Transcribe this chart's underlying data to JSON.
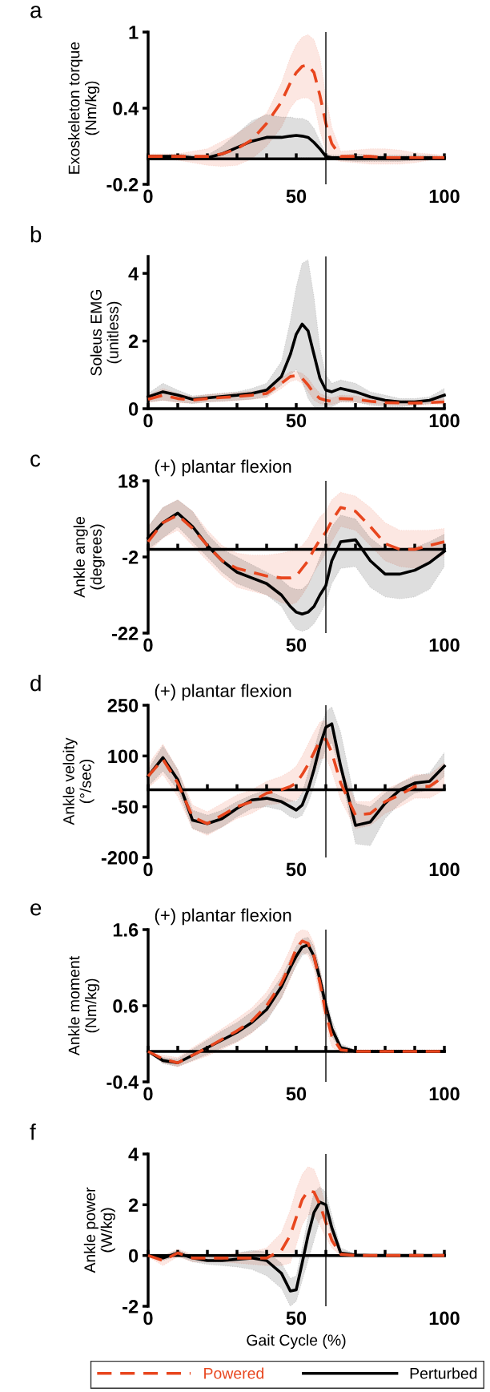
{
  "chart_data": [
    {
      "type": "line",
      "title": "a",
      "ylabel": "Exoskeleton torque\n(Nm/kg)",
      "x": [
        0,
        5,
        10,
        15,
        20,
        25,
        30,
        35,
        40,
        45,
        48,
        50,
        52,
        54,
        56,
        58,
        60,
        62,
        65,
        70,
        75,
        80,
        85,
        90,
        95,
        100
      ],
      "series": [
        {
          "color": "#e8461e",
          "line_style": "dashed",
          "values": [
            0.02,
            0.02,
            0.02,
            0.02,
            0.02,
            0.04,
            0.08,
            0.15,
            0.28,
            0.45,
            0.6,
            0.68,
            0.73,
            0.74,
            0.68,
            0.5,
            0.28,
            0.12,
            0.02,
            0.02,
            0.02,
            0.01,
            0.01,
            0.01,
            0.01,
            0.01
          ],
          "upper": [
            0.04,
            0.04,
            0.04,
            0.06,
            0.08,
            0.14,
            0.2,
            0.28,
            0.36,
            0.6,
            0.8,
            0.9,
            0.96,
            0.98,
            0.94,
            0.8,
            0.5,
            0.25,
            0.06,
            0.07,
            0.08,
            0.08,
            0.07,
            0.05,
            0.04,
            0.03
          ],
          "lower": [
            0.0,
            0.0,
            -0.01,
            -0.03,
            -0.05,
            -0.06,
            -0.05,
            0.0,
            0.1,
            0.25,
            0.4,
            0.46,
            0.48,
            0.48,
            0.44,
            0.22,
            0.06,
            0.0,
            -0.02,
            -0.03,
            -0.04,
            -0.04,
            -0.04,
            -0.03,
            -0.01,
            0.0
          ]
        },
        {
          "color": "#000000",
          "line_style": "solid",
          "values": [
            0.02,
            0.02,
            0.02,
            0.01,
            0.01,
            0.04,
            0.09,
            0.14,
            0.17,
            0.17,
            0.18,
            0.185,
            0.18,
            0.17,
            0.13,
            0.08,
            0.02,
            0.01,
            0.01,
            0.01,
            0.01,
            0.01,
            0.01,
            0.01,
            0.01,
            0.01
          ],
          "upper": [
            0.03,
            0.03,
            0.04,
            0.03,
            0.03,
            0.1,
            0.2,
            0.3,
            0.35,
            0.33,
            0.33,
            0.32,
            0.32,
            0.3,
            0.24,
            0.14,
            0.04,
            0.03,
            0.03,
            0.04,
            0.03,
            0.03,
            0.03,
            0.03,
            0.03,
            0.02
          ],
          "lower": [
            0.01,
            0.01,
            0.0,
            0.0,
            0.0,
            0.0,
            0.0,
            0.0,
            0.0,
            0.0,
            0.0,
            0.01,
            0.01,
            0.01,
            0.0,
            0.0,
            0.0,
            0.0,
            -0.01,
            -0.02,
            -0.02,
            -0.02,
            -0.02,
            -0.01,
            0.0,
            0.0
          ]
        }
      ],
      "xlim": [
        0,
        100
      ],
      "xticks": [
        0,
        {
          "value": 10,
          "label": null
        },
        {
          "value": 20,
          "label": null
        },
        {
          "value": 30,
          "label": null
        },
        {
          "value": 40,
          "label": null
        },
        50,
        {
          "value": 60,
          "label": null
        },
        {
          "value": 70,
          "label": null
        },
        {
          "value": 80,
          "label": null
        },
        {
          "value": 90,
          "label": null
        },
        100
      ],
      "ylim": [
        -0.2,
        1
      ],
      "yticks": [
        -0.2,
        0.4,
        1
      ],
      "ref_lines": [
        {
          "axis": "x",
          "value": 60
        }
      ]
    },
    {
      "type": "line",
      "title": "b",
      "ylabel": "Soleus EMG\n(unitless)",
      "x": [
        0,
        5,
        10,
        15,
        20,
        25,
        30,
        35,
        40,
        45,
        48,
        50,
        52,
        54,
        56,
        58,
        60,
        62,
        65,
        70,
        75,
        80,
        85,
        90,
        95,
        100
      ],
      "series": [
        {
          "color": "#e8461e",
          "line_style": "dashed",
          "values": [
            0.28,
            0.4,
            0.3,
            0.25,
            0.3,
            0.33,
            0.36,
            0.4,
            0.45,
            0.75,
            0.95,
            0.98,
            0.9,
            0.7,
            0.45,
            0.3,
            0.25,
            0.22,
            0.3,
            0.28,
            0.22,
            0.18,
            0.17,
            0.17,
            0.18,
            0.2
          ],
          "upper": [
            0.4,
            0.6,
            0.45,
            0.35,
            0.42,
            0.45,
            0.48,
            0.52,
            0.58,
            0.9,
            1.1,
            1.1,
            1.05,
            0.9,
            0.65,
            0.45,
            0.38,
            0.32,
            0.4,
            0.38,
            0.3,
            0.25,
            0.24,
            0.24,
            0.25,
            0.3
          ],
          "lower": [
            0.18,
            0.25,
            0.18,
            0.16,
            0.2,
            0.22,
            0.24,
            0.28,
            0.32,
            0.6,
            0.8,
            0.85,
            0.75,
            0.5,
            0.25,
            0.15,
            0.12,
            0.12,
            0.2,
            0.18,
            0.14,
            0.11,
            0.1,
            0.1,
            0.11,
            0.12
          ]
        },
        {
          "color": "#000000",
          "line_style": "solid",
          "values": [
            0.35,
            0.5,
            0.4,
            0.28,
            0.32,
            0.36,
            0.4,
            0.45,
            0.55,
            0.95,
            1.6,
            2.2,
            2.5,
            2.3,
            1.6,
            0.9,
            0.55,
            0.5,
            0.6,
            0.5,
            0.35,
            0.25,
            0.2,
            0.2,
            0.25,
            0.4
          ],
          "upper": [
            0.45,
            0.75,
            0.55,
            0.38,
            0.42,
            0.46,
            0.5,
            0.6,
            0.75,
            1.4,
            2.6,
            3.6,
            4.3,
            4.4,
            3.3,
            1.8,
            1.0,
            0.75,
            0.85,
            0.75,
            0.5,
            0.4,
            0.3,
            0.3,
            0.35,
            0.6
          ],
          "lower": [
            0.2,
            0.25,
            0.2,
            0.15,
            0.2,
            0.22,
            0.25,
            0.28,
            0.35,
            0.7,
            1.0,
            1.15,
            0.8,
            0.3,
            0.05,
            0.0,
            0.0,
            0.05,
            0.2,
            0.2,
            0.1,
            0.05,
            0.05,
            0.1,
            0.15,
            0.2
          ]
        }
      ],
      "xlim": [
        0,
        100
      ],
      "xticks": [
        0,
        {
          "value": 10,
          "label": null
        },
        {
          "value": 20,
          "label": null
        },
        {
          "value": 30,
          "label": null
        },
        {
          "value": 40,
          "label": null
        },
        50,
        {
          "value": 60,
          "label": null
        },
        {
          "value": 70,
          "label": null
        },
        {
          "value": 80,
          "label": null
        },
        {
          "value": 90,
          "label": null
        },
        100
      ],
      "ylim": [
        0,
        4.5
      ],
      "yticks": [
        0,
        2,
        4
      ],
      "ref_lines": [
        {
          "axis": "x",
          "value": 60
        }
      ]
    },
    {
      "type": "line",
      "title": "c",
      "subtitle": "(+) plantar flexion",
      "ylabel": "Ankle angle\n(degrees)",
      "x": [
        0,
        5,
        10,
        15,
        20,
        25,
        30,
        35,
        40,
        45,
        48,
        50,
        52,
        54,
        56,
        58,
        60,
        62,
        65,
        70,
        75,
        80,
        85,
        90,
        95,
        100
      ],
      "series": [
        {
          "color": "#e8461e",
          "line_style": "dashed",
          "values": [
            2,
            7,
            9,
            5.5,
            1,
            -3,
            -5,
            -6,
            -7,
            -7.5,
            -7.5,
            -7,
            -5,
            -3,
            0,
            2.5,
            4.5,
            7.5,
            11,
            10,
            6,
            1.5,
            0,
            0,
            1,
            2
          ],
          "upper": [
            6,
            11,
            13,
            10,
            5,
            1,
            -1,
            -1.5,
            -1.5,
            -1,
            -0.5,
            0,
            1,
            3,
            6,
            8.5,
            10,
            13,
            15,
            14,
            11,
            7,
            5,
            5,
            5,
            5.5
          ],
          "lower": [
            -1,
            3,
            5,
            1,
            -3,
            -7,
            -10,
            -11,
            -12,
            -14,
            -14.5,
            -14,
            -12,
            -9.5,
            -6,
            -3.5,
            -1,
            2,
            6,
            5,
            1,
            -3,
            -4.5,
            -5,
            -3,
            -1.5
          ]
        },
        {
          "color": "#000000",
          "line_style": "solid",
          "values": [
            3,
            7,
            9.5,
            6,
            1,
            -3,
            -6,
            -7.5,
            -9,
            -12,
            -15,
            -16.5,
            -17,
            -16.5,
            -15,
            -12,
            -9.5,
            -3,
            2,
            2.5,
            -3,
            -6.5,
            -6.5,
            -5.5,
            -3.5,
            -0.5
          ],
          "upper": [
            6,
            11,
            13,
            10,
            4,
            0,
            -2,
            -4,
            -6,
            -8,
            -10,
            -10.5,
            -10.5,
            -9,
            -6,
            -2,
            2,
            6,
            9,
            8,
            3,
            0,
            0,
            0.5,
            2,
            4
          ],
          "lower": [
            0,
            3,
            6,
            2,
            -2,
            -6,
            -9,
            -10.5,
            -12,
            -15,
            -19,
            -21,
            -21.5,
            -21,
            -19.5,
            -17,
            -14,
            -9,
            -5,
            -4.5,
            -10,
            -12.5,
            -13,
            -12.5,
            -10.5,
            -4.5
          ]
        }
      ],
      "xlim": [
        0,
        100
      ],
      "xticks": [
        0,
        {
          "value": 10,
          "label": null
        },
        {
          "value": 20,
          "label": null
        },
        {
          "value": 30,
          "label": null
        },
        {
          "value": 40,
          "label": null
        },
        50,
        {
          "value": 60,
          "label": null
        },
        {
          "value": 70,
          "label": null
        },
        {
          "value": 80,
          "label": null
        },
        {
          "value": 90,
          "label": null
        },
        100
      ],
      "ylim": [
        -22,
        18
      ],
      "yticks": [
        -22,
        -2,
        18
      ],
      "ref_lines": [
        {
          "axis": "x",
          "value": 60
        }
      ]
    },
    {
      "type": "line",
      "title": "d",
      "subtitle": "(+) plantar flexion",
      "ylabel": "Ankle veloity\n(°/sec)",
      "x": [
        0,
        5,
        10,
        15,
        20,
        25,
        30,
        35,
        40,
        45,
        48,
        50,
        52,
        54,
        56,
        58,
        60,
        62,
        65,
        70,
        75,
        80,
        85,
        90,
        95,
        100
      ],
      "series": [
        {
          "color": "#e8461e",
          "line_style": "dashed",
          "values": [
            40,
            90,
            20,
            -80,
            -100,
            -75,
            -50,
            -35,
            -10,
            0,
            10,
            20,
            45,
            75,
            110,
            145,
            150,
            110,
            20,
            -75,
            -70,
            -35,
            -15,
            10,
            10,
            40
          ],
          "upper": [
            75,
            135,
            60,
            -45,
            -65,
            -40,
            -15,
            0,
            25,
            40,
            55,
            70,
            100,
            135,
            170,
            200,
            205,
            165,
            70,
            -35,
            -35,
            0,
            20,
            45,
            45,
            80
          ],
          "lower": [
            5,
            45,
            -20,
            -115,
            -135,
            -110,
            -85,
            -70,
            -45,
            -40,
            -35,
            -30,
            -10,
            15,
            50,
            90,
            95,
            55,
            -30,
            -115,
            -105,
            -70,
            -50,
            -25,
            -25,
            0
          ]
        },
        {
          "color": "#000000",
          "line_style": "solid",
          "values": [
            40,
            95,
            30,
            -90,
            -100,
            -85,
            -55,
            -30,
            -25,
            -35,
            -50,
            -60,
            -45,
            0,
            60,
            130,
            185,
            195,
            70,
            -105,
            -95,
            -40,
            0,
            20,
            25,
            70
          ],
          "upper": [
            60,
            130,
            60,
            -60,
            -75,
            -60,
            -35,
            -15,
            0,
            -20,
            -30,
            -35,
            -10,
            50,
            120,
            180,
            230,
            245,
            170,
            -40,
            -50,
            -10,
            20,
            40,
            50,
            110
          ],
          "lower": [
            10,
            55,
            0,
            -115,
            -130,
            -110,
            -80,
            -55,
            -50,
            -60,
            -80,
            -85,
            -75,
            -40,
            10,
            70,
            120,
            140,
            50,
            -160,
            -165,
            -85,
            -40,
            -10,
            0,
            40
          ]
        }
      ],
      "xlim": [
        0,
        100
      ],
      "xticks": [
        0,
        {
          "value": 10,
          "label": null
        },
        {
          "value": 20,
          "label": null
        },
        {
          "value": 30,
          "label": null
        },
        {
          "value": 40,
          "label": null
        },
        50,
        {
          "value": 60,
          "label": null
        },
        {
          "value": 70,
          "label": null
        },
        {
          "value": 80,
          "label": null
        },
        {
          "value": 90,
          "label": null
        },
        100
      ],
      "ylim": [
        -200,
        250
      ],
      "yticks": [
        -200,
        -50,
        100,
        250
      ],
      "ref_lines": [
        {
          "axis": "x",
          "value": 60
        }
      ]
    },
    {
      "type": "line",
      "title": "e",
      "subtitle": "(+) plantar flexion",
      "ylabel": "Ankle moment\n(Nm/kg)",
      "x": [
        0,
        5,
        10,
        15,
        20,
        25,
        30,
        35,
        40,
        45,
        48,
        50,
        52,
        54,
        56,
        58,
        60,
        62,
        65,
        70,
        75,
        80,
        85,
        90,
        95,
        100
      ],
      "series": [
        {
          "color": "#e8461e",
          "line_style": "dashed",
          "values": [
            0,
            -0.1,
            -0.15,
            -0.05,
            0.05,
            0.16,
            0.27,
            0.4,
            0.6,
            0.9,
            1.15,
            1.35,
            1.45,
            1.42,
            1.25,
            0.9,
            0.5,
            0.2,
            0.02,
            0,
            0,
            0,
            0,
            0,
            0,
            0
          ],
          "upper": [
            0,
            -0.05,
            -0.08,
            0.05,
            0.17,
            0.3,
            0.43,
            0.57,
            0.78,
            1.1,
            1.35,
            1.55,
            1.6,
            1.58,
            1.42,
            1.08,
            0.68,
            0.35,
            0.07,
            0.02,
            0.02,
            0.02,
            0.02,
            0.02,
            0.02,
            0.02
          ],
          "lower": [
            0,
            -0.15,
            -0.2,
            -0.13,
            -0.06,
            0.03,
            0.12,
            0.24,
            0.42,
            0.7,
            0.95,
            1.15,
            1.3,
            1.26,
            1.08,
            0.72,
            0.32,
            0.06,
            -0.03,
            -0.02,
            -0.02,
            -0.02,
            -0.02,
            -0.02,
            -0.02,
            -0.02
          ]
        },
        {
          "color": "#000000",
          "line_style": "solid",
          "values": [
            0,
            -0.12,
            -0.15,
            -0.05,
            0.05,
            0.15,
            0.25,
            0.38,
            0.55,
            0.85,
            1.1,
            1.25,
            1.37,
            1.4,
            1.25,
            0.95,
            0.6,
            0.3,
            0.05,
            0,
            0,
            0,
            0,
            0,
            0,
            0
          ],
          "upper": [
            0,
            -0.08,
            -0.1,
            0.03,
            0.15,
            0.27,
            0.38,
            0.52,
            0.7,
            0.98,
            1.22,
            1.38,
            1.48,
            1.5,
            1.38,
            1.08,
            0.72,
            0.42,
            0.1,
            0.02,
            0.02,
            0.02,
            0.02,
            0.02,
            0.02,
            0.02
          ],
          "lower": [
            0,
            -0.16,
            -0.2,
            -0.12,
            -0.04,
            0.05,
            0.13,
            0.25,
            0.4,
            0.7,
            0.97,
            1.12,
            1.26,
            1.3,
            1.14,
            0.82,
            0.48,
            0.2,
            0.01,
            -0.01,
            -0.01,
            -0.01,
            -0.01,
            -0.01,
            -0.01,
            -0.01
          ]
        }
      ],
      "xlim": [
        0,
        100
      ],
      "xticks": [
        0,
        {
          "value": 10,
          "label": null
        },
        {
          "value": 20,
          "label": null
        },
        {
          "value": 30,
          "label": null
        },
        {
          "value": 40,
          "label": null
        },
        50,
        {
          "value": 60,
          "label": null
        },
        {
          "value": 70,
          "label": null
        },
        {
          "value": 80,
          "label": null
        },
        {
          "value": 90,
          "label": null
        },
        100
      ],
      "ylim": [
        -0.4,
        1.6
      ],
      "yticks": [
        -0.4,
        0.6,
        1.6
      ],
      "ref_lines": [
        {
          "axis": "x",
          "value": 60
        }
      ]
    },
    {
      "type": "line",
      "title": "f",
      "ylabel": "Ankle power\n(W/kg)",
      "xlabel": "Gait Cycle (%)",
      "legend": "bottom",
      "x": [
        0,
        5,
        10,
        15,
        20,
        25,
        30,
        35,
        40,
        45,
        48,
        50,
        52,
        54,
        56,
        58,
        60,
        62,
        65,
        70,
        75,
        80,
        85,
        90,
        95,
        100
      ],
      "series": [
        {
          "name": "Powered",
          "color": "#e8461e",
          "line_style": "dashed",
          "values": [
            0,
            -0.2,
            0.1,
            -0.1,
            -0.1,
            -0.1,
            -0.1,
            -0.1,
            -0.1,
            0.2,
            0.8,
            1.5,
            2.2,
            2.55,
            2.5,
            2.0,
            1.3,
            0.6,
            0.05,
            0,
            0,
            0,
            0,
            0,
            0,
            0
          ],
          "upper": [
            0.05,
            0,
            0.25,
            0.05,
            0.05,
            0.05,
            0.1,
            0.15,
            0.3,
            0.9,
            1.8,
            2.6,
            3.2,
            3.5,
            3.4,
            2.8,
            1.9,
            0.9,
            0.1,
            0.02,
            0.02,
            0.02,
            0.02,
            0.02,
            0.02,
            0.02
          ],
          "lower": [
            -0.05,
            -0.4,
            -0.05,
            -0.25,
            -0.25,
            -0.25,
            -0.3,
            -0.35,
            -0.4,
            -0.4,
            -0.3,
            0.4,
            1.2,
            1.6,
            1.6,
            1.2,
            0.7,
            0.3,
            0,
            -0.02,
            -0.02,
            -0.02,
            -0.02,
            -0.02,
            -0.02,
            -0.02
          ]
        },
        {
          "name": "Perturbed",
          "color": "#000000",
          "line_style": "solid",
          "values": [
            0,
            -0.1,
            0.1,
            -0.1,
            -0.2,
            -0.2,
            -0.15,
            -0.1,
            -0.2,
            -0.7,
            -1.4,
            -1.35,
            -0.3,
            0.8,
            1.7,
            2.1,
            2.0,
            1.1,
            0.1,
            0.02,
            0,
            0,
            0,
            0,
            0,
            0
          ],
          "upper": [
            0.05,
            0,
            0.2,
            0,
            -0.1,
            -0.05,
            0.1,
            0.2,
            0.15,
            -0.3,
            -0.9,
            -0.8,
            0.3,
            1.5,
            2.5,
            2.7,
            2.5,
            1.6,
            0.3,
            0.05,
            0.02,
            0.02,
            0.02,
            0.02,
            0.02,
            0.02
          ],
          "lower": [
            -0.05,
            -0.2,
            0,
            -0.25,
            -0.35,
            -0.4,
            -0.45,
            -0.55,
            -0.8,
            -1.3,
            -2.0,
            -1.8,
            -1.0,
            -0.2,
            0.6,
            1.4,
            1.6,
            0.8,
            -0.05,
            -0.02,
            -0.02,
            -0.02,
            -0.02,
            -0.02,
            -0.02,
            -0.02
          ]
        }
      ],
      "xlim": [
        0,
        100
      ],
      "xticks": [
        0,
        {
          "value": 10,
          "label": null
        },
        {
          "value": 20,
          "label": null
        },
        {
          "value": 30,
          "label": null
        },
        {
          "value": 40,
          "label": null
        },
        50,
        {
          "value": 60,
          "label": null
        },
        {
          "value": 70,
          "label": null
        },
        {
          "value": 80,
          "label": null
        },
        {
          "value": 90,
          "label": null
        },
        100
      ],
      "ylim": [
        -2,
        4
      ],
      "yticks": [
        -2,
        0,
        2,
        4
      ],
      "ref_lines": [
        {
          "axis": "x",
          "value": 60
        }
      ]
    }
  ]
}
